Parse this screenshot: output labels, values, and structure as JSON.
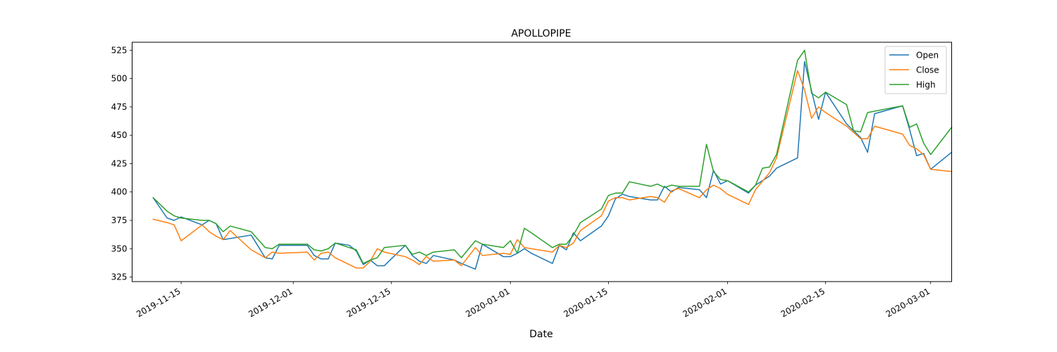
{
  "chart_data": {
    "type": "line",
    "title": "APOLLOPIPE",
    "xlabel": "Date",
    "ylabel": "",
    "x_range": [
      "2019-11-08",
      "2020-03-04"
    ],
    "ylim": [
      321,
      532
    ],
    "x_ticks": [
      {
        "date": "2019-11-15",
        "label": "2019-11-15"
      },
      {
        "date": "2019-12-01",
        "label": "2019-12-01"
      },
      {
        "date": "2019-12-15",
        "label": "2019-12-15"
      },
      {
        "date": "2020-01-01",
        "label": "2020-01-01"
      },
      {
        "date": "2020-01-15",
        "label": "2020-01-15"
      },
      {
        "date": "2020-02-01",
        "label": "2020-02-01"
      },
      {
        "date": "2020-02-15",
        "label": "2020-02-15"
      },
      {
        "date": "2020-03-01",
        "label": "2020-03-01"
      }
    ],
    "y_ticks": [
      325,
      350,
      375,
      400,
      425,
      450,
      475,
      500,
      525
    ],
    "grid": false,
    "legend_position": "top-right",
    "series": [
      {
        "name": "Open",
        "color": "#1f77b4",
        "points": [
          [
            "2019-11-11",
            395
          ],
          [
            "2019-11-13",
            377
          ],
          [
            "2019-11-14",
            375
          ],
          [
            "2019-11-15",
            378
          ],
          [
            "2019-11-18",
            371
          ],
          [
            "2019-11-19",
            375
          ],
          [
            "2019-11-20",
            372
          ],
          [
            "2019-11-21",
            358
          ],
          [
            "2019-11-25",
            362
          ],
          [
            "2019-11-27",
            342
          ],
          [
            "2019-11-28",
            341
          ],
          [
            "2019-11-29",
            353
          ],
          [
            "2019-12-03",
            353
          ],
          [
            "2019-12-04",
            344
          ],
          [
            "2019-12-05",
            341
          ],
          [
            "2019-12-06",
            341
          ],
          [
            "2019-12-07",
            355
          ],
          [
            "2019-12-09",
            353
          ],
          [
            "2019-12-10",
            348
          ],
          [
            "2019-12-11",
            336
          ],
          [
            "2019-12-12",
            340
          ],
          [
            "2019-12-13",
            335
          ],
          [
            "2019-12-14",
            335
          ],
          [
            "2019-12-17",
            353
          ],
          [
            "2019-12-18",
            344
          ],
          [
            "2019-12-19",
            339
          ],
          [
            "2019-12-20",
            337
          ],
          [
            "2019-12-21",
            344
          ],
          [
            "2019-12-24",
            340
          ],
          [
            "2019-12-25",
            337
          ],
          [
            "2019-12-27",
            332
          ],
          [
            "2019-12-28",
            354
          ],
          [
            "2019-12-31",
            343
          ],
          [
            "2020-01-01",
            343
          ],
          [
            "2020-01-02",
            346
          ],
          [
            "2020-01-03",
            350
          ],
          [
            "2020-01-04",
            346
          ],
          [
            "2020-01-07",
            337
          ],
          [
            "2020-01-08",
            353
          ],
          [
            "2020-01-09",
            349
          ],
          [
            "2020-01-10",
            364
          ],
          [
            "2020-01-11",
            357
          ],
          [
            "2020-01-14",
            370
          ],
          [
            "2020-01-15",
            379
          ],
          [
            "2020-01-16",
            394
          ],
          [
            "2020-01-17",
            398
          ],
          [
            "2020-01-18",
            396
          ],
          [
            "2020-01-21",
            393
          ],
          [
            "2020-01-22",
            393
          ],
          [
            "2020-01-23",
            405
          ],
          [
            "2020-01-24",
            400
          ],
          [
            "2020-01-25",
            404
          ],
          [
            "2020-01-28",
            402
          ],
          [
            "2020-01-29",
            395
          ],
          [
            "2020-01-30",
            419
          ],
          [
            "2020-01-31",
            407
          ],
          [
            "2020-02-01",
            410
          ],
          [
            "2020-02-04",
            399
          ],
          [
            "2020-02-05",
            406
          ],
          [
            "2020-02-07",
            414
          ],
          [
            "2020-02-08",
            421
          ],
          [
            "2020-02-11",
            430
          ],
          [
            "2020-02-12",
            515
          ],
          [
            "2020-02-13",
            489
          ],
          [
            "2020-02-14",
            464
          ],
          [
            "2020-02-15",
            488
          ],
          [
            "2020-02-18",
            460
          ],
          [
            "2020-02-20",
            448
          ],
          [
            "2020-02-21",
            435
          ],
          [
            "2020-02-22",
            469
          ],
          [
            "2020-02-26",
            476
          ],
          [
            "2020-02-27",
            455
          ],
          [
            "2020-02-28",
            432
          ],
          [
            "2020-02-29",
            434
          ],
          [
            "2020-03-01",
            420
          ],
          [
            "2020-03-04",
            435
          ]
        ]
      },
      {
        "name": "Close",
        "color": "#ff7f0e",
        "points": [
          [
            "2019-11-11",
            376
          ],
          [
            "2019-11-13",
            373
          ],
          [
            "2019-11-14",
            371
          ],
          [
            "2019-11-15",
            357
          ],
          [
            "2019-11-18",
            371
          ],
          [
            "2019-11-19",
            365
          ],
          [
            "2019-11-20",
            361
          ],
          [
            "2019-11-21",
            358
          ],
          [
            "2019-11-22",
            366
          ],
          [
            "2019-11-25",
            349
          ],
          [
            "2019-11-27",
            342
          ],
          [
            "2019-11-28",
            347
          ],
          [
            "2019-11-29",
            346
          ],
          [
            "2019-12-03",
            347
          ],
          [
            "2019-12-04",
            340
          ],
          [
            "2019-12-05",
            346
          ],
          [
            "2019-12-06",
            347
          ],
          [
            "2019-12-07",
            342
          ],
          [
            "2019-12-10",
            333
          ],
          [
            "2019-12-11",
            333
          ],
          [
            "2019-12-12",
            339
          ],
          [
            "2019-12-13",
            350
          ],
          [
            "2019-12-14",
            347
          ],
          [
            "2019-12-17",
            343
          ],
          [
            "2019-12-18",
            340
          ],
          [
            "2019-12-19",
            336
          ],
          [
            "2019-12-20",
            343
          ],
          [
            "2019-12-21",
            339
          ],
          [
            "2019-12-24",
            340
          ],
          [
            "2019-12-25",
            335
          ],
          [
            "2019-12-27",
            351
          ],
          [
            "2019-12-28",
            344
          ],
          [
            "2019-12-31",
            346
          ],
          [
            "2020-01-01",
            345
          ],
          [
            "2020-01-02",
            358
          ],
          [
            "2020-01-03",
            351
          ],
          [
            "2020-01-04",
            350
          ],
          [
            "2020-01-07",
            347
          ],
          [
            "2020-01-08",
            353
          ],
          [
            "2020-01-09",
            351
          ],
          [
            "2020-01-10",
            355
          ],
          [
            "2020-01-11",
            366
          ],
          [
            "2020-01-14",
            379
          ],
          [
            "2020-01-15",
            392
          ],
          [
            "2020-01-16",
            395
          ],
          [
            "2020-01-17",
            395
          ],
          [
            "2020-01-18",
            393
          ],
          [
            "2020-01-21",
            396
          ],
          [
            "2020-01-22",
            395
          ],
          [
            "2020-01-23",
            391
          ],
          [
            "2020-01-24",
            401
          ],
          [
            "2020-01-25",
            403
          ],
          [
            "2020-01-28",
            395
          ],
          [
            "2020-01-29",
            402
          ],
          [
            "2020-01-30",
            406
          ],
          [
            "2020-01-31",
            403
          ],
          [
            "2020-02-01",
            398
          ],
          [
            "2020-02-04",
            389
          ],
          [
            "2020-02-05",
            402
          ],
          [
            "2020-02-07",
            417
          ],
          [
            "2020-02-08",
            430
          ],
          [
            "2020-02-11",
            507
          ],
          [
            "2020-02-12",
            490
          ],
          [
            "2020-02-13",
            465
          ],
          [
            "2020-02-14",
            475
          ],
          [
            "2020-02-15",
            470
          ],
          [
            "2020-02-18",
            458
          ],
          [
            "2020-02-20",
            447
          ],
          [
            "2020-02-21",
            447
          ],
          [
            "2020-02-22",
            458
          ],
          [
            "2020-02-26",
            451
          ],
          [
            "2020-02-27",
            441
          ],
          [
            "2020-02-28",
            438
          ],
          [
            "2020-02-29",
            433
          ],
          [
            "2020-03-01",
            420
          ],
          [
            "2020-03-04",
            418
          ]
        ]
      },
      {
        "name": "High",
        "color": "#2ca02c",
        "points": [
          [
            "2019-11-11",
            395
          ],
          [
            "2019-11-13",
            383
          ],
          [
            "2019-11-14",
            379
          ],
          [
            "2019-11-15",
            377
          ],
          [
            "2019-11-18",
            375
          ],
          [
            "2019-11-19",
            375
          ],
          [
            "2019-11-20",
            372
          ],
          [
            "2019-11-21",
            365
          ],
          [
            "2019-11-22",
            370
          ],
          [
            "2019-11-25",
            365
          ],
          [
            "2019-11-27",
            351
          ],
          [
            "2019-11-28",
            350
          ],
          [
            "2019-11-29",
            354
          ],
          [
            "2019-12-03",
            354
          ],
          [
            "2019-12-04",
            349
          ],
          [
            "2019-12-05",
            348
          ],
          [
            "2019-12-06",
            350
          ],
          [
            "2019-12-07",
            355
          ],
          [
            "2019-12-10",
            349
          ],
          [
            "2019-12-11",
            337
          ],
          [
            "2019-12-12",
            340
          ],
          [
            "2019-12-13",
            342
          ],
          [
            "2019-12-14",
            351
          ],
          [
            "2019-12-17",
            353
          ],
          [
            "2019-12-18",
            345
          ],
          [
            "2019-12-19",
            347
          ],
          [
            "2019-12-20",
            344
          ],
          [
            "2019-12-21",
            347
          ],
          [
            "2019-12-24",
            349
          ],
          [
            "2019-12-25",
            342
          ],
          [
            "2019-12-27",
            357
          ],
          [
            "2019-12-28",
            354
          ],
          [
            "2019-12-31",
            351
          ],
          [
            "2020-01-01",
            357
          ],
          [
            "2020-01-02",
            346
          ],
          [
            "2020-01-03",
            368
          ],
          [
            "2020-01-04",
            364
          ],
          [
            "2020-01-07",
            351
          ],
          [
            "2020-01-08",
            354
          ],
          [
            "2020-01-09",
            354
          ],
          [
            "2020-01-10",
            362
          ],
          [
            "2020-01-11",
            373
          ],
          [
            "2020-01-14",
            385
          ],
          [
            "2020-01-15",
            397
          ],
          [
            "2020-01-16",
            399
          ],
          [
            "2020-01-17",
            399
          ],
          [
            "2020-01-18",
            409
          ],
          [
            "2020-01-21",
            405
          ],
          [
            "2020-01-22",
            407
          ],
          [
            "2020-01-23",
            404
          ],
          [
            "2020-01-24",
            406
          ],
          [
            "2020-01-25",
            405
          ],
          [
            "2020-01-28",
            405
          ],
          [
            "2020-01-29",
            442
          ],
          [
            "2020-01-30",
            418
          ],
          [
            "2020-01-31",
            411
          ],
          [
            "2020-02-01",
            410
          ],
          [
            "2020-02-04",
            400
          ],
          [
            "2020-02-05",
            406
          ],
          [
            "2020-02-06",
            421
          ],
          [
            "2020-02-07",
            422
          ],
          [
            "2020-02-08",
            433
          ],
          [
            "2020-02-11",
            516
          ],
          [
            "2020-02-12",
            525
          ],
          [
            "2020-02-13",
            487
          ],
          [
            "2020-02-14",
            483
          ],
          [
            "2020-02-15",
            488
          ],
          [
            "2020-02-18",
            477
          ],
          [
            "2020-02-19",
            454
          ],
          [
            "2020-02-20",
            453
          ],
          [
            "2020-02-21",
            470
          ],
          [
            "2020-02-26",
            476
          ],
          [
            "2020-02-27",
            457
          ],
          [
            "2020-02-28",
            460
          ],
          [
            "2020-02-29",
            443
          ],
          [
            "2020-03-01",
            433
          ],
          [
            "2020-03-04",
            457
          ]
        ]
      }
    ]
  }
}
